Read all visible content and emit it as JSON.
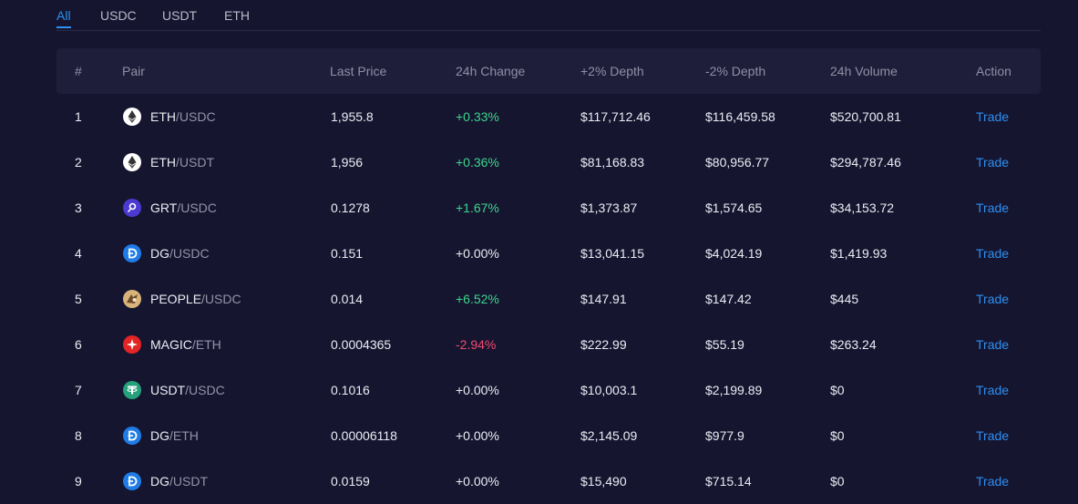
{
  "tabs": [
    {
      "label": "All",
      "active": true
    },
    {
      "label": "USDC",
      "active": false
    },
    {
      "label": "USDT",
      "active": false
    },
    {
      "label": "ETH",
      "active": false
    }
  ],
  "table": {
    "headers": {
      "index": "#",
      "pair": "Pair",
      "last_price": "Last Price",
      "change": "24h Change",
      "depth_plus": "+2% Depth",
      "depth_minus": "-2% Depth",
      "volume": "24h Volume",
      "action": "Action"
    },
    "rows": [
      {
        "index": "1",
        "base": "ETH",
        "quote": "/USDC",
        "icon": "eth-icon",
        "last_price": "1,955.8",
        "change": "+0.33%",
        "change_dir": "pos",
        "depth_plus": "$117,712.46",
        "depth_minus": "$116,459.58",
        "volume": "$520,700.81",
        "action": "Trade"
      },
      {
        "index": "2",
        "base": "ETH",
        "quote": "/USDT",
        "icon": "eth-icon",
        "last_price": "1,956",
        "change": "+0.36%",
        "change_dir": "pos",
        "depth_plus": "$81,168.83",
        "depth_minus": "$80,956.77",
        "volume": "$294,787.46",
        "action": "Trade"
      },
      {
        "index": "3",
        "base": "GRT",
        "quote": "/USDC",
        "icon": "grt-icon",
        "last_price": "0.1278",
        "change": "+1.67%",
        "change_dir": "pos",
        "depth_plus": "$1,373.87",
        "depth_minus": "$1,574.65",
        "volume": "$34,153.72",
        "action": "Trade"
      },
      {
        "index": "4",
        "base": "DG",
        "quote": "/USDC",
        "icon": "dg-icon",
        "last_price": "0.151",
        "change": "+0.00%",
        "change_dir": "neu",
        "depth_plus": "$13,041.15",
        "depth_minus": "$4,024.19",
        "volume": "$1,419.93",
        "action": "Trade"
      },
      {
        "index": "5",
        "base": "PEOPLE",
        "quote": "/USDC",
        "icon": "people-icon",
        "last_price": "0.014",
        "change": "+6.52%",
        "change_dir": "pos",
        "depth_plus": "$147.91",
        "depth_minus": "$147.42",
        "volume": "$445",
        "action": "Trade"
      },
      {
        "index": "6",
        "base": "MAGIC",
        "quote": "/ETH",
        "icon": "magic-icon",
        "last_price": "0.0004365",
        "change": "-2.94%",
        "change_dir": "neg",
        "depth_plus": "$222.99",
        "depth_minus": "$55.19",
        "volume": "$263.24",
        "action": "Trade"
      },
      {
        "index": "7",
        "base": "USDT",
        "quote": "/USDC",
        "icon": "usdt-icon",
        "last_price": "0.1016",
        "change": "+0.00%",
        "change_dir": "neu",
        "depth_plus": "$10,003.1",
        "depth_minus": "$2,199.89",
        "volume": "$0",
        "action": "Trade"
      },
      {
        "index": "8",
        "base": "DG",
        "quote": "/ETH",
        "icon": "dg-icon",
        "last_price": "0.00006118",
        "change": "+0.00%",
        "change_dir": "neu",
        "depth_plus": "$2,145.09",
        "depth_minus": "$977.9",
        "volume": "$0",
        "action": "Trade"
      },
      {
        "index": "9",
        "base": "DG",
        "quote": "/USDT",
        "icon": "dg-icon",
        "last_price": "0.0159",
        "change": "+0.00%",
        "change_dir": "neu",
        "depth_plus": "$15,490",
        "depth_minus": "$715.14",
        "volume": "$0",
        "action": "Trade"
      }
    ]
  },
  "colors": {
    "background": "#151530",
    "header_bg": "#1e1e3a",
    "accent": "#2e8ff0",
    "positive": "#3ed68c",
    "negative": "#f04b6e"
  }
}
